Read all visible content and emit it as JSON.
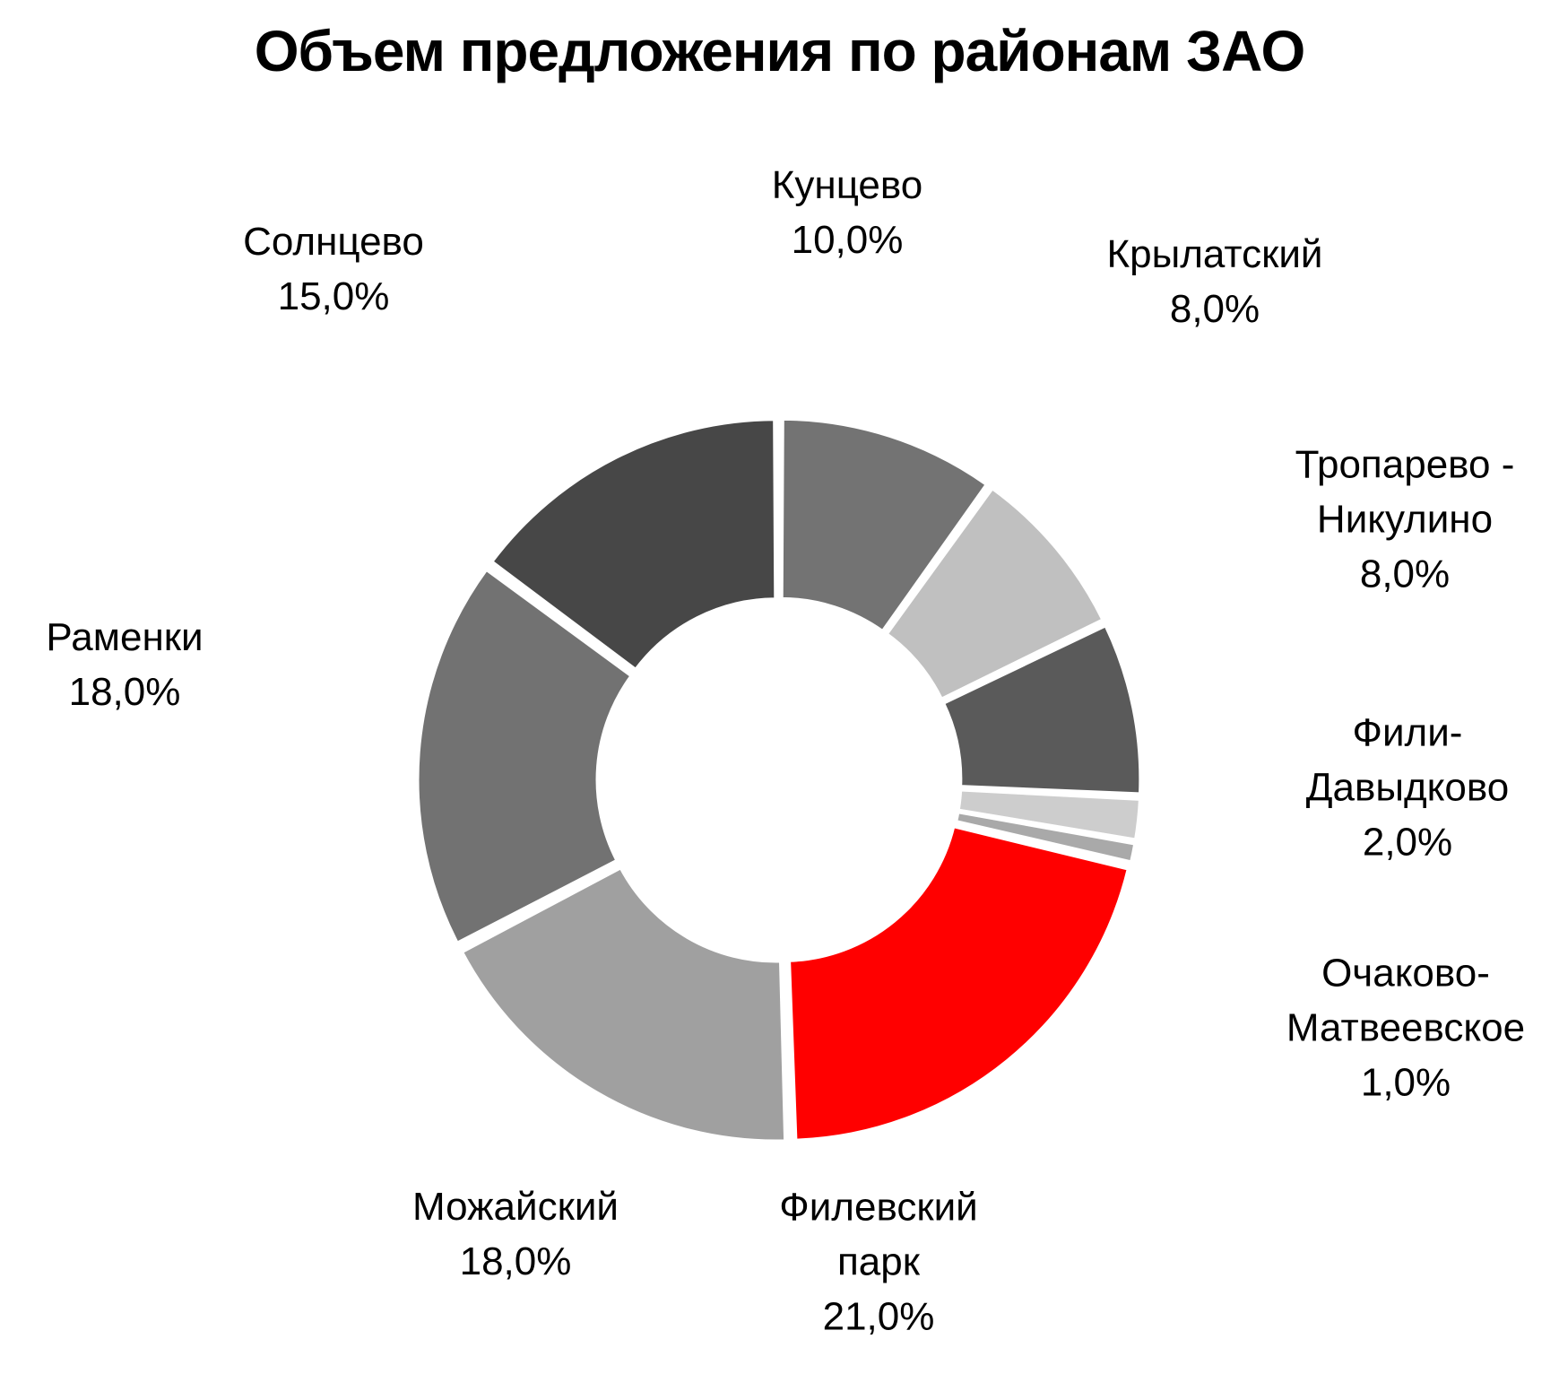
{
  "chart_data": {
    "type": "pie",
    "style": "donut",
    "title": "Объем предложения по районам ЗАО",
    "slices": [
      {
        "name": "Кунцево",
        "label_lines": [
          "Кунцево"
        ],
        "value": 10.0,
        "value_label": "10,0%",
        "color": "#737373"
      },
      {
        "name": "Крылатский",
        "label_lines": [
          "Крылатский"
        ],
        "value": 8.0,
        "value_label": "8,0%",
        "color": "#c0c0c0"
      },
      {
        "name": "Тропарево - Никулино",
        "label_lines": [
          "Тропарево -",
          "Никулино"
        ],
        "value": 8.0,
        "value_label": "8,0%",
        "color": "#5a5a5a"
      },
      {
        "name": "Фили-Давыдково",
        "label_lines": [
          "Фили-",
          "Давыдково"
        ],
        "value": 2.0,
        "value_label": "2,0%",
        "color": "#cdcdcd"
      },
      {
        "name": "Очаково-Матвеевское",
        "label_lines": [
          "Очаково-",
          "Матвеевское"
        ],
        "value": 1.0,
        "value_label": "1,0%",
        "color": "#a9a9a9"
      },
      {
        "name": "Филевский парк",
        "label_lines": [
          "Филевский",
          "парк"
        ],
        "value": 21.0,
        "value_label": "21,0%",
        "color": "#ff0000"
      },
      {
        "name": "Можайский",
        "label_lines": [
          "Можайский"
        ],
        "value": 18.0,
        "value_label": "18,0%",
        "color": "#a0a0a0"
      },
      {
        "name": "Раменки",
        "label_lines": [
          "Раменки"
        ],
        "value": 18.0,
        "value_label": "18,0%",
        "color": "#727272"
      },
      {
        "name": "Солнцево",
        "label_lines": [
          "Солнцево"
        ],
        "value": 15.0,
        "value_label": "15,0%",
        "color": "#474747"
      }
    ]
  }
}
